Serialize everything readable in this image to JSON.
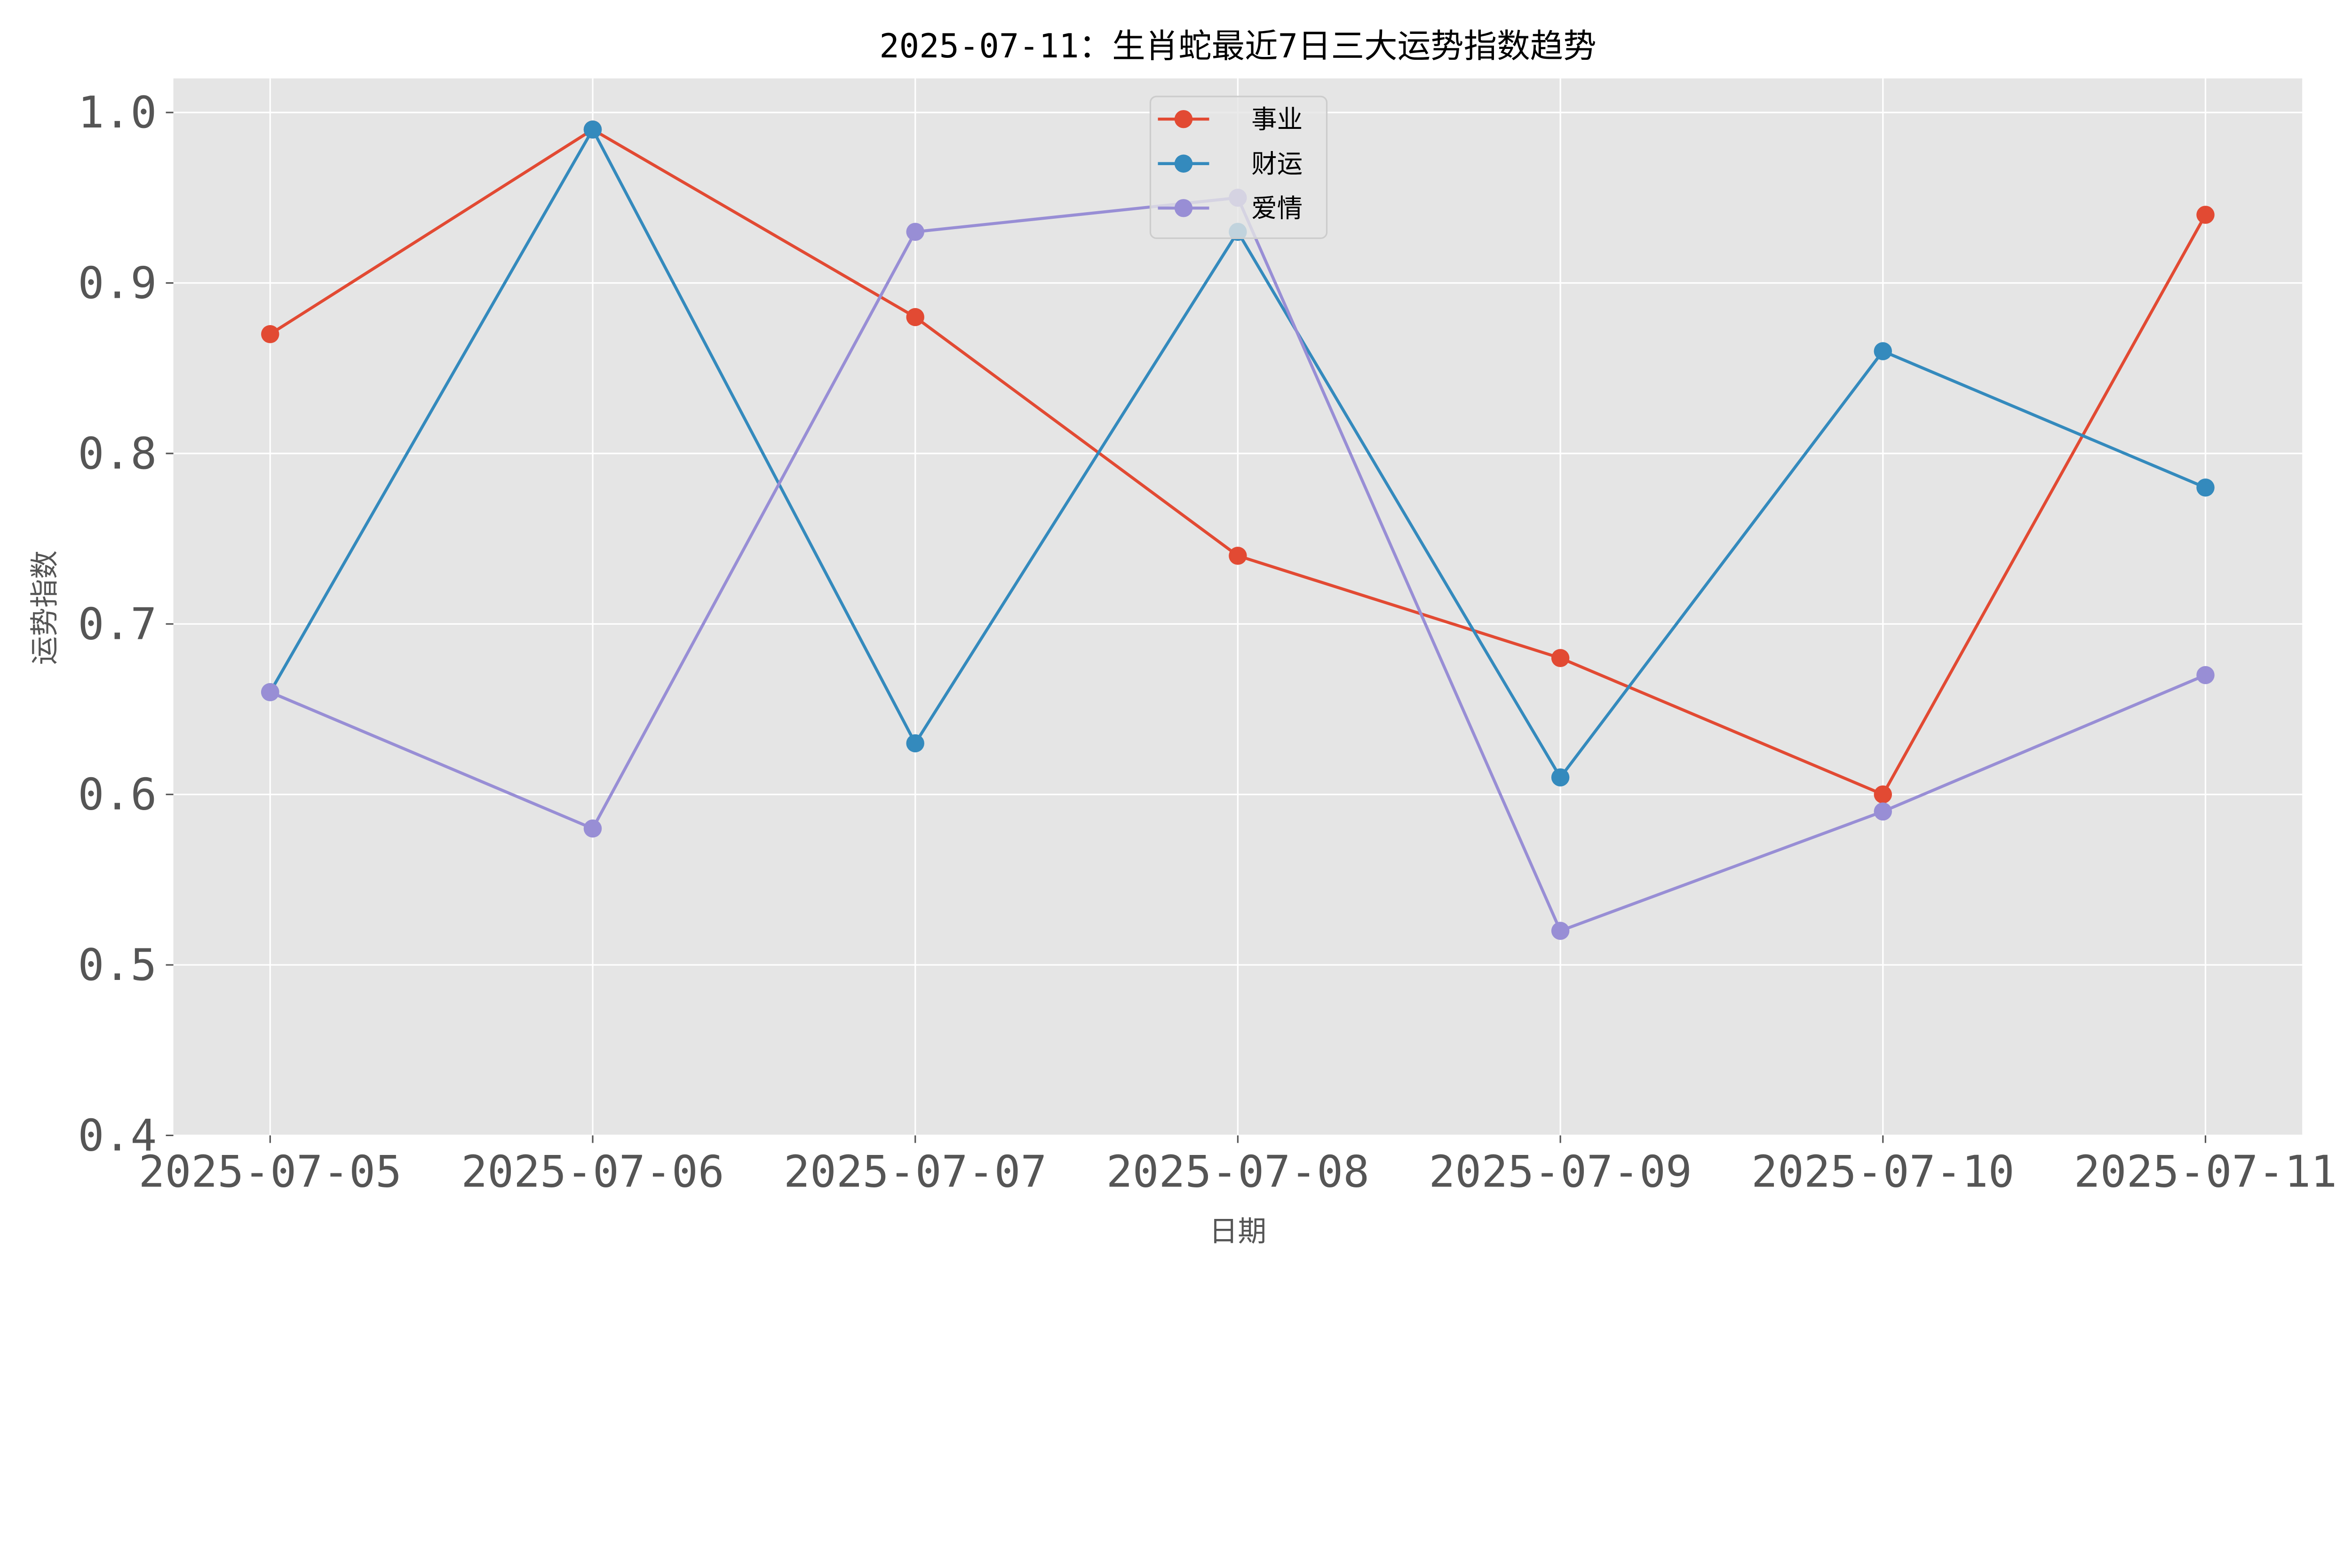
{
  "chart_data": {
    "type": "line",
    "title": "2025-07-11：生肖蛇最近7日三大运势指数趋势",
    "xlabel": "日期",
    "ylabel": "运势指数",
    "categories": [
      "2025-07-05",
      "2025-07-06",
      "2025-07-07",
      "2025-07-08",
      "2025-07-09",
      "2025-07-10",
      "2025-07-11"
    ],
    "ylim": [
      0.4,
      1.02
    ],
    "yticks": [
      "0.4",
      "0.5",
      "0.6",
      "0.7",
      "0.8",
      "0.9",
      "1.0"
    ],
    "grid": true,
    "legend_position": "top-center",
    "series": [
      {
        "name": "事业",
        "color": "#E24A33",
        "values": [
          0.87,
          0.99,
          0.88,
          0.74,
          0.68,
          0.6,
          0.94
        ]
      },
      {
        "name": "财运",
        "color": "#348ABD",
        "values": [
          0.66,
          0.99,
          0.63,
          0.93,
          0.61,
          0.86,
          0.78
        ]
      },
      {
        "name": "爱情",
        "color": "#988ED5",
        "values": [
          0.66,
          0.58,
          0.93,
          0.95,
          0.52,
          0.59,
          0.67
        ]
      }
    ]
  }
}
